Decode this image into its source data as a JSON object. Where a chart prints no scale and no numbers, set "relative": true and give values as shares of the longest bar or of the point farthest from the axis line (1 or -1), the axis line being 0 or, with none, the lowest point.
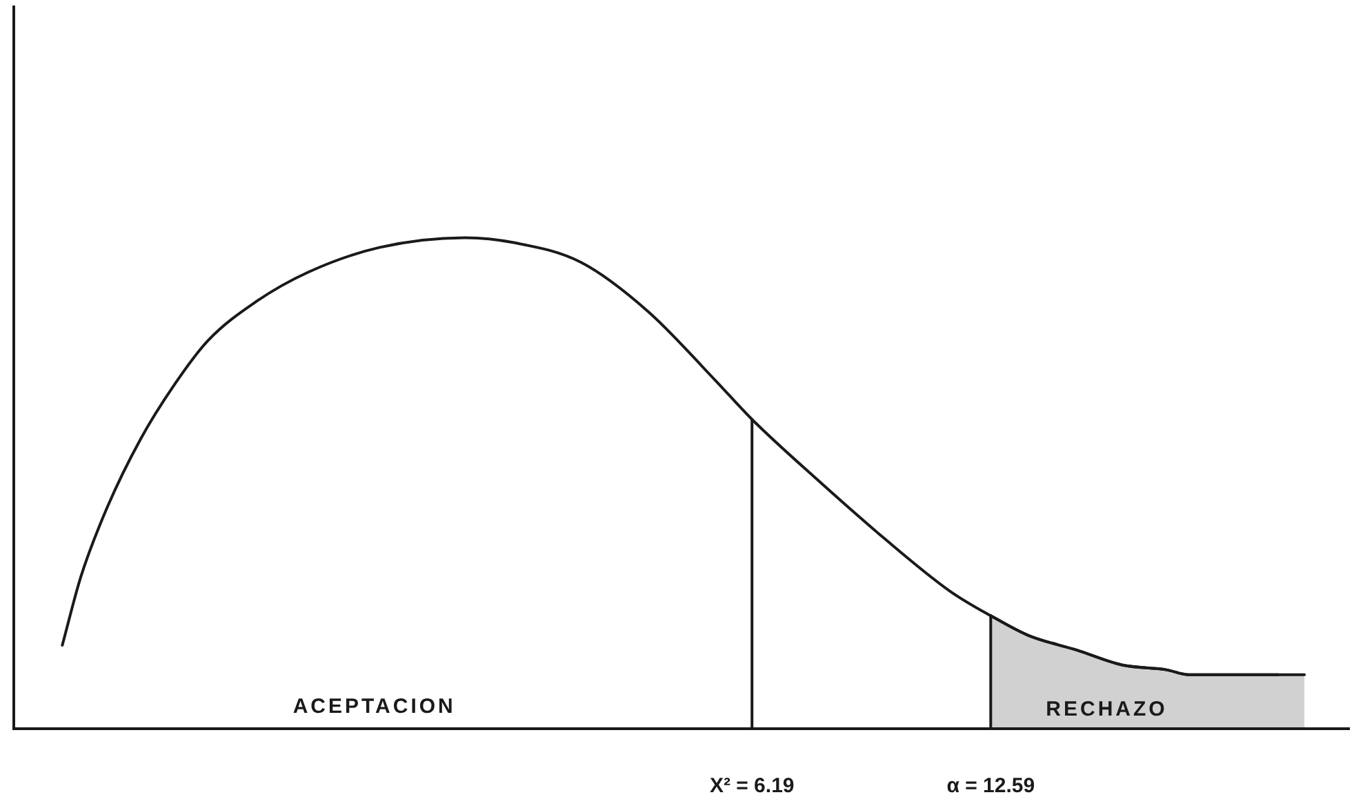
{
  "chart_data": {
    "type": "line",
    "x": [
      -12.3,
      -11.8,
      -11.1,
      -10.2,
      -9.3,
      -8.4,
      -7.1,
      -5.7,
      -3.8,
      -1.5,
      -0.2,
      1.6,
      3.4,
      5.2,
      6.19,
      7.9,
      9.7,
      11.5,
      12.59,
      13.6,
      14.9,
      16.1,
      17.3,
      17.9,
      20.3
    ],
    "series": [
      {
        "color": "#1a1a1a",
        "values": [
          0.17,
          0.31,
          0.45,
          0.59,
          0.7,
          0.79,
          0.87,
          0.93,
          0.98,
          1,
          0.99,
          0.95,
          0.85,
          0.71,
          0.63,
          0.51,
          0.39,
          0.28,
          0.23,
          0.19,
          0.16,
          0.13,
          0.12,
          0.11,
          0.11
        ]
      },
      {
        "type": "area",
        "name": "RECHAZO",
        "color": "#1a1a1a",
        "x": [
          12.59,
          13.6,
          14.9,
          16.1,
          17.3,
          17.9,
          20.3,
          21.0
        ],
        "values": [
          0.23,
          0.19,
          0.16,
          0.13,
          0.12,
          0.11,
          0.11,
          0.11
        ]
      }
    ],
    "relative": true,
    "xlim": [
      -13.6,
      22.2
    ],
    "xticks": [
      {
        "value": 6.19,
        "label": "X² = 6.19"
      },
      {
        "value": 12.59,
        "label": "α = 12.59"
      }
    ],
    "ref_lines": [
      {
        "axis": "x",
        "value": 6.19
      },
      {
        "axis": "x",
        "value": 12.59
      }
    ],
    "annotations": [
      "ACEPTACION"
    ]
  }
}
